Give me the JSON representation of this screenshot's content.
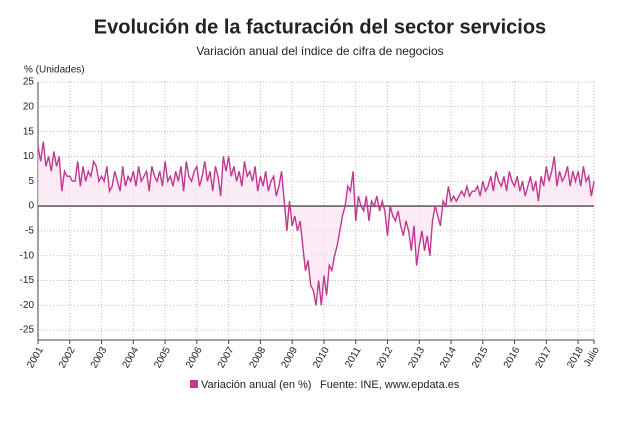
{
  "chart_data": {
    "type": "line",
    "title": "Evolución de la facturación del sector servicios",
    "subtitle": "Variación anual del índice de cifra de negocios",
    "y_label": "% (Unidades)",
    "source": "Fuente: INE, www.epdata.es",
    "categories": [
      "2001",
      null,
      null,
      null,
      null,
      null,
      null,
      null,
      null,
      null,
      null,
      null,
      "2002",
      null,
      null,
      null,
      null,
      null,
      null,
      null,
      null,
      null,
      null,
      null,
      "2003",
      null,
      null,
      null,
      null,
      null,
      null,
      null,
      null,
      null,
      null,
      null,
      "2004",
      null,
      null,
      null,
      null,
      null,
      null,
      null,
      null,
      null,
      null,
      null,
      "2005",
      null,
      null,
      null,
      null,
      null,
      null,
      null,
      null,
      null,
      null,
      null,
      "2006",
      null,
      null,
      null,
      null,
      null,
      null,
      null,
      null,
      null,
      null,
      null,
      "2007",
      null,
      null,
      null,
      null,
      null,
      null,
      null,
      null,
      null,
      null,
      null,
      "2008",
      null,
      null,
      null,
      null,
      null,
      null,
      null,
      null,
      null,
      null,
      null,
      "2009",
      null,
      null,
      null,
      null,
      null,
      null,
      null,
      null,
      null,
      null,
      null,
      "2010",
      null,
      null,
      null,
      null,
      null,
      null,
      null,
      null,
      null,
      null,
      null,
      "2011",
      null,
      null,
      null,
      null,
      null,
      null,
      null,
      null,
      null,
      null,
      null,
      "2012",
      null,
      null,
      null,
      null,
      null,
      null,
      null,
      null,
      null,
      null,
      null,
      "2013",
      null,
      null,
      null,
      null,
      null,
      null,
      null,
      null,
      null,
      null,
      null,
      "2014",
      null,
      null,
      null,
      null,
      null,
      null,
      null,
      null,
      null,
      null,
      null,
      "2015",
      null,
      null,
      null,
      null,
      null,
      null,
      null,
      null,
      null,
      null,
      null,
      "2016",
      null,
      null,
      null,
      null,
      null,
      null,
      null,
      null,
      null,
      null,
      null,
      "2017",
      null,
      null,
      null,
      null,
      null,
      null,
      null,
      null,
      null,
      null,
      null,
      "2018",
      null,
      null,
      null,
      null,
      null,
      "Julio"
    ],
    "series": [
      {
        "name": "Variación anual (en %)",
        "color": "#c2378f",
        "values": [
          12,
          9,
          13,
          8,
          10,
          7,
          11,
          8,
          10,
          3,
          7,
          6,
          6,
          5,
          5,
          9,
          4,
          8,
          5,
          7,
          6,
          9,
          8,
          5,
          6,
          5,
          8,
          3,
          4,
          7,
          5,
          3,
          8,
          4,
          6,
          5,
          7,
          4,
          8,
          5,
          6,
          7,
          3,
          8,
          6,
          5,
          7,
          4,
          9,
          5,
          6,
          4,
          7,
          5,
          8,
          3,
          9,
          6,
          5,
          7,
          8,
          4,
          6,
          9,
          5,
          7,
          3,
          8,
          6,
          2,
          10,
          7,
          10,
          6,
          8,
          5,
          7,
          4,
          9,
          6,
          7,
          5,
          8,
          3,
          6,
          4,
          7,
          3,
          5,
          6,
          2,
          4,
          7,
          1,
          -5,
          1,
          -4,
          -2,
          -5,
          -3,
          -8,
          -13,
          -11,
          -16,
          -17,
          -20,
          -15,
          -20,
          -14,
          -18,
          -12,
          -13,
          -10,
          -8,
          -5,
          -2,
          0,
          4,
          3,
          7,
          -3,
          2,
          0,
          -1,
          2,
          -3,
          1,
          0,
          2,
          -1,
          1,
          -1,
          -6,
          0,
          -2,
          -3,
          -1,
          -4,
          -6,
          -3,
          -5,
          -9,
          -4,
          -12,
          -8,
          -5,
          -9,
          -6,
          -10,
          -3,
          0,
          -2,
          -4,
          1,
          0,
          4,
          1,
          2,
          1,
          2,
          3,
          2,
          4,
          2,
          3,
          3,
          4,
          2,
          5,
          3,
          4,
          6,
          3,
          7,
          5,
          4,
          6,
          3,
          7,
          5,
          4,
          6,
          3,
          5,
          2,
          4,
          6,
          3,
          5,
          1,
          6,
          4,
          8,
          5,
          7,
          10,
          4,
          7,
          5,
          6,
          8,
          4,
          7,
          5,
          7,
          4,
          8,
          5,
          6,
          2,
          5
        ]
      }
    ],
    "ylim": [
      -27,
      25
    ],
    "yticks": [
      25,
      20,
      15,
      10,
      5,
      0,
      -5,
      -10,
      -15,
      -20,
      -25
    ],
    "grid": true
  }
}
